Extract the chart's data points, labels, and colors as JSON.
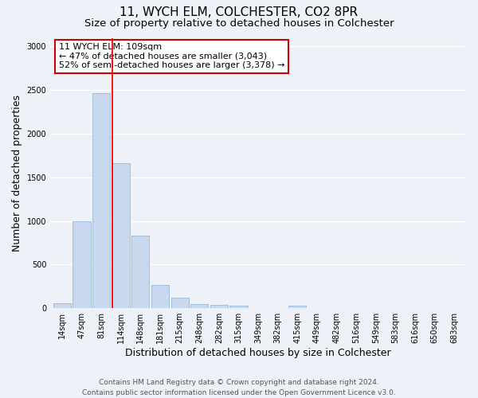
{
  "title": "11, WYCH ELM, COLCHESTER, CO2 8PR",
  "subtitle": "Size of property relative to detached houses in Colchester",
  "xlabel": "Distribution of detached houses by size in Colchester",
  "ylabel": "Number of detached properties",
  "categories": [
    "14sqm",
    "47sqm",
    "81sqm",
    "114sqm",
    "148sqm",
    "181sqm",
    "215sqm",
    "248sqm",
    "282sqm",
    "315sqm",
    "349sqm",
    "382sqm",
    "415sqm",
    "449sqm",
    "482sqm",
    "516sqm",
    "549sqm",
    "583sqm",
    "616sqm",
    "650sqm",
    "683sqm"
  ],
  "values": [
    55,
    1000,
    2470,
    1660,
    830,
    270,
    120,
    50,
    40,
    30,
    0,
    0,
    30,
    0,
    0,
    0,
    0,
    0,
    0,
    0,
    0
  ],
  "bar_color": "#c8d8ee",
  "bar_edge_color": "#9ab8d8",
  "red_line_x": 2.575,
  "red_line_label": "11 WYCH ELM: 109sqm",
  "annotation_line1": "← 47% of detached houses are smaller (3,043)",
  "annotation_line2": "52% of semi-detached houses are larger (3,378) →",
  "annotation_box_color": "#ffffff",
  "annotation_box_edge_color": "#cc0000",
  "ylim": [
    0,
    3100
  ],
  "yticks": [
    0,
    500,
    1000,
    1500,
    2000,
    2500,
    3000
  ],
  "footer_line1": "Contains HM Land Registry data © Crown copyright and database right 2024.",
  "footer_line2": "Contains public sector information licensed under the Open Government Licence v3.0.",
  "bg_color": "#eef2f8",
  "plot_bg_color": "#eef2f8",
  "title_fontsize": 11,
  "subtitle_fontsize": 9.5,
  "axis_label_fontsize": 9,
  "tick_fontsize": 7,
  "footer_fontsize": 6.5,
  "annotation_fontsize": 8
}
